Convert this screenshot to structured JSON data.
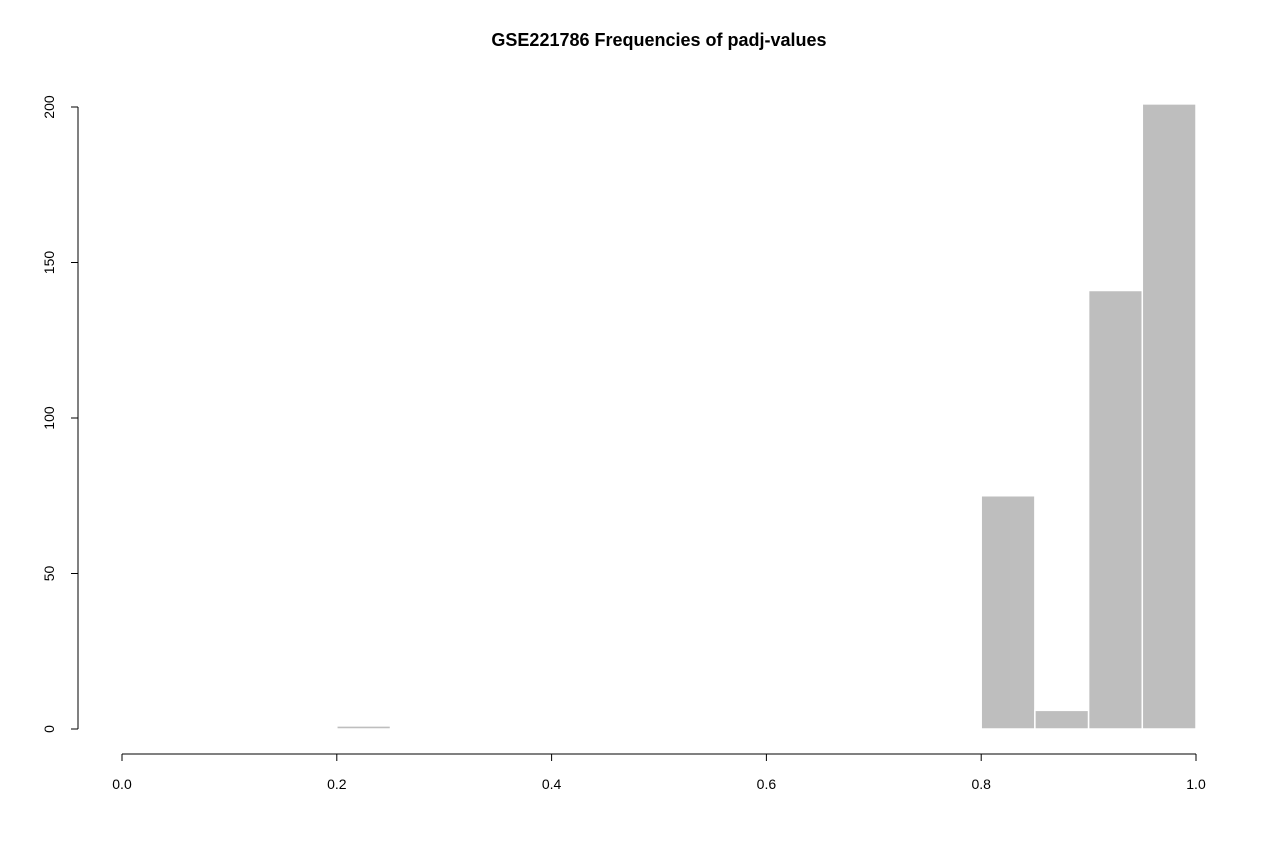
{
  "chart_data": {
    "type": "bar",
    "title": "GSE221786 Frequencies of padj-values",
    "xlabel": "",
    "ylabel": "",
    "bins": [
      {
        "x0": 0.2,
        "x1": 0.25,
        "count": 1
      },
      {
        "x0": 0.8,
        "x1": 0.85,
        "count": 75
      },
      {
        "x0": 0.85,
        "x1": 0.9,
        "count": 6
      },
      {
        "x0": 0.9,
        "x1": 0.95,
        "count": 141
      },
      {
        "x0": 0.95,
        "x1": 1.0,
        "count": 201
      }
    ],
    "xlim": [
      0,
      1
    ],
    "ylim": [
      0,
      200
    ],
    "x_ticks": [
      "0.0",
      "0.2",
      "0.4",
      "0.6",
      "0.8",
      "1.0"
    ],
    "y_ticks": [
      "0",
      "50",
      "100",
      "150",
      "200"
    ],
    "grid": false,
    "legend": "none",
    "bar_color": "#bebebe"
  }
}
